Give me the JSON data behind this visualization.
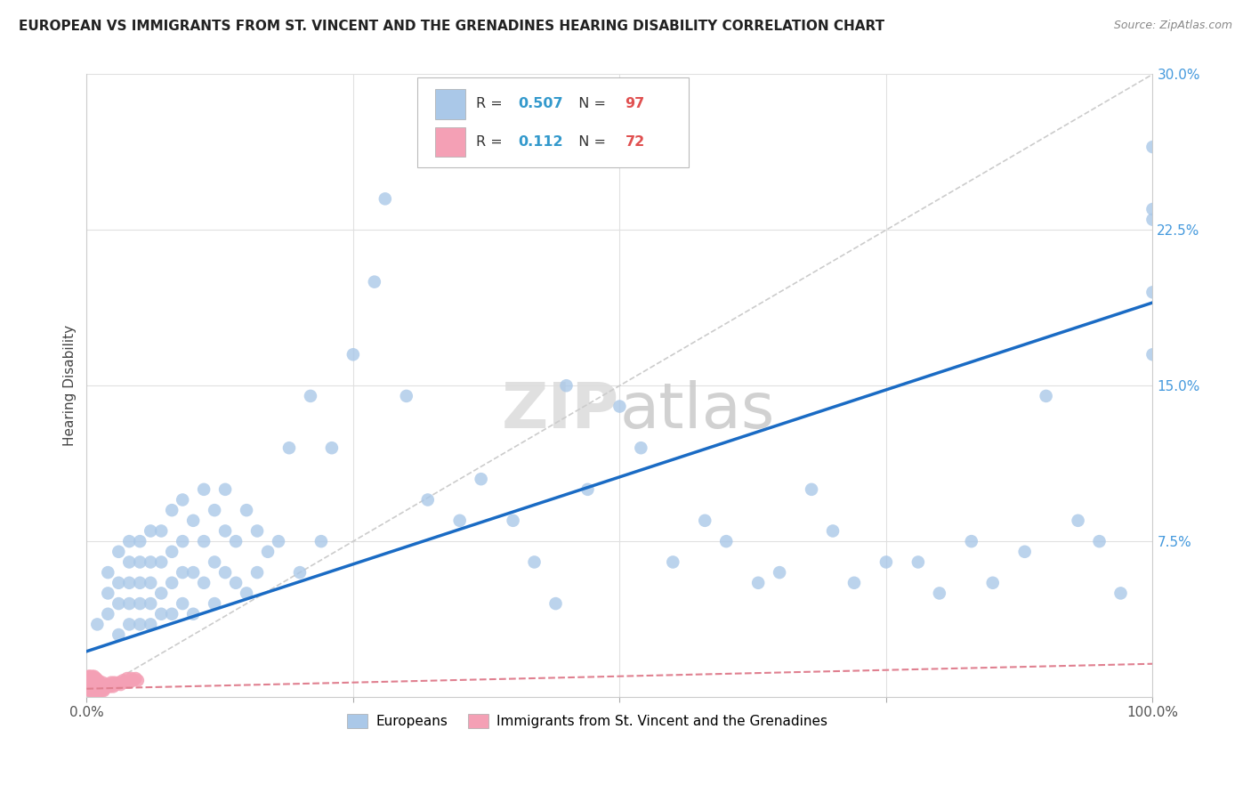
{
  "title": "EUROPEAN VS IMMIGRANTS FROM ST. VINCENT AND THE GRENADINES HEARING DISABILITY CORRELATION CHART",
  "source": "Source: ZipAtlas.com",
  "ylabel": "Hearing Disability",
  "xlim": [
    0,
    1.0
  ],
  "ylim": [
    0,
    0.3
  ],
  "yticks": [
    0.0,
    0.075,
    0.15,
    0.225,
    0.3
  ],
  "xticks": [
    0.0,
    0.25,
    0.5,
    0.75,
    1.0
  ],
  "blue_R": 0.507,
  "blue_N": 97,
  "pink_R": 0.112,
  "pink_N": 72,
  "blue_color": "#aac8e8",
  "blue_line_color": "#1a6bc4",
  "pink_color": "#f4a0b5",
  "pink_line_color": "#e08090",
  "ref_line_color": "#cccccc",
  "legend_blue_label": "Europeans",
  "legend_pink_label": "Immigrants from St. Vincent and the Grenadines",
  "blue_points_x": [
    0.01,
    0.02,
    0.02,
    0.02,
    0.03,
    0.03,
    0.03,
    0.03,
    0.04,
    0.04,
    0.04,
    0.04,
    0.04,
    0.05,
    0.05,
    0.05,
    0.05,
    0.05,
    0.06,
    0.06,
    0.06,
    0.06,
    0.06,
    0.07,
    0.07,
    0.07,
    0.07,
    0.08,
    0.08,
    0.08,
    0.08,
    0.09,
    0.09,
    0.09,
    0.09,
    0.1,
    0.1,
    0.1,
    0.11,
    0.11,
    0.11,
    0.12,
    0.12,
    0.12,
    0.13,
    0.13,
    0.13,
    0.14,
    0.14,
    0.15,
    0.15,
    0.16,
    0.16,
    0.17,
    0.18,
    0.19,
    0.2,
    0.21,
    0.22,
    0.23,
    0.25,
    0.27,
    0.28,
    0.3,
    0.32,
    0.35,
    0.37,
    0.4,
    0.42,
    0.44,
    0.45,
    0.47,
    0.5,
    0.52,
    0.55,
    0.58,
    0.6,
    0.63,
    0.65,
    0.68,
    0.7,
    0.72,
    0.75,
    0.78,
    0.8,
    0.83,
    0.85,
    0.88,
    0.9,
    0.93,
    0.95,
    0.97,
    1.0,
    1.0,
    1.0,
    1.0,
    1.0
  ],
  "blue_points_y": [
    0.035,
    0.04,
    0.05,
    0.06,
    0.03,
    0.045,
    0.055,
    0.07,
    0.035,
    0.045,
    0.055,
    0.065,
    0.075,
    0.035,
    0.045,
    0.055,
    0.065,
    0.075,
    0.035,
    0.045,
    0.055,
    0.065,
    0.08,
    0.04,
    0.05,
    0.065,
    0.08,
    0.04,
    0.055,
    0.07,
    0.09,
    0.045,
    0.06,
    0.075,
    0.095,
    0.04,
    0.06,
    0.085,
    0.055,
    0.075,
    0.1,
    0.045,
    0.065,
    0.09,
    0.06,
    0.08,
    0.1,
    0.055,
    0.075,
    0.05,
    0.09,
    0.06,
    0.08,
    0.07,
    0.075,
    0.12,
    0.06,
    0.145,
    0.075,
    0.12,
    0.165,
    0.2,
    0.24,
    0.145,
    0.095,
    0.085,
    0.105,
    0.085,
    0.065,
    0.045,
    0.15,
    0.1,
    0.14,
    0.12,
    0.065,
    0.085,
    0.075,
    0.055,
    0.06,
    0.1,
    0.08,
    0.055,
    0.065,
    0.065,
    0.05,
    0.075,
    0.055,
    0.07,
    0.145,
    0.085,
    0.075,
    0.05,
    0.195,
    0.265,
    0.235,
    0.165,
    0.23
  ],
  "pink_points_x": [
    0.001,
    0.001,
    0.002,
    0.002,
    0.002,
    0.003,
    0.003,
    0.003,
    0.003,
    0.004,
    0.004,
    0.004,
    0.004,
    0.005,
    0.005,
    0.005,
    0.005,
    0.005,
    0.006,
    0.006,
    0.006,
    0.006,
    0.007,
    0.007,
    0.007,
    0.007,
    0.007,
    0.008,
    0.008,
    0.008,
    0.008,
    0.009,
    0.009,
    0.009,
    0.009,
    0.01,
    0.01,
    0.01,
    0.011,
    0.011,
    0.011,
    0.012,
    0.012,
    0.012,
    0.013,
    0.013,
    0.014,
    0.014,
    0.015,
    0.015,
    0.016,
    0.016,
    0.017,
    0.018,
    0.019,
    0.02,
    0.021,
    0.022,
    0.023,
    0.025,
    0.026,
    0.028,
    0.03,
    0.032,
    0.034,
    0.036,
    0.038,
    0.04,
    0.042,
    0.044,
    0.046,
    0.048
  ],
  "pink_points_y": [
    0.005,
    0.008,
    0.004,
    0.007,
    0.01,
    0.003,
    0.005,
    0.007,
    0.01,
    0.003,
    0.005,
    0.007,
    0.009,
    0.003,
    0.004,
    0.006,
    0.008,
    0.01,
    0.003,
    0.005,
    0.007,
    0.009,
    0.003,
    0.005,
    0.006,
    0.008,
    0.01,
    0.003,
    0.004,
    0.006,
    0.009,
    0.003,
    0.005,
    0.007,
    0.009,
    0.003,
    0.005,
    0.007,
    0.003,
    0.005,
    0.008,
    0.003,
    0.005,
    0.007,
    0.004,
    0.006,
    0.003,
    0.006,
    0.004,
    0.007,
    0.003,
    0.005,
    0.004,
    0.005,
    0.006,
    0.005,
    0.006,
    0.005,
    0.007,
    0.005,
    0.007,
    0.006,
    0.007,
    0.006,
    0.008,
    0.007,
    0.009,
    0.007,
    0.009,
    0.008,
    0.009,
    0.008
  ]
}
